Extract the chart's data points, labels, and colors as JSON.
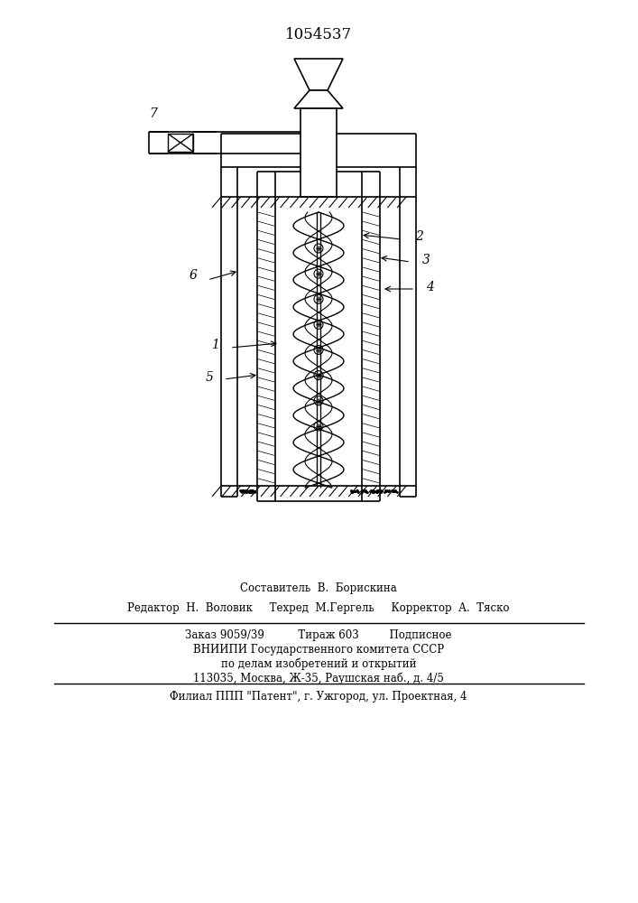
{
  "patent_number": "1054537",
  "background_color": "#ffffff",
  "line_color": "#000000",
  "title_fontsize": 12,
  "label_fontsize": 10,
  "footer_lines": [
    "Составитель  В.  Борискина",
    "Редактор  Н.  Воловик     Техред  М.Гергель     Корректор  А.  Тяско",
    "Заказ 9059/39          Тираж 603         Подписное",
    "ВНИИПИ Государственного комитета СССР",
    "по делам изобретений и открытий",
    "113035, Москва, Ж-35, Раушская наб., д. 4/5",
    "Филиал ППП \"Патент\", г. Ужгород, ул. Проектная, 4"
  ]
}
